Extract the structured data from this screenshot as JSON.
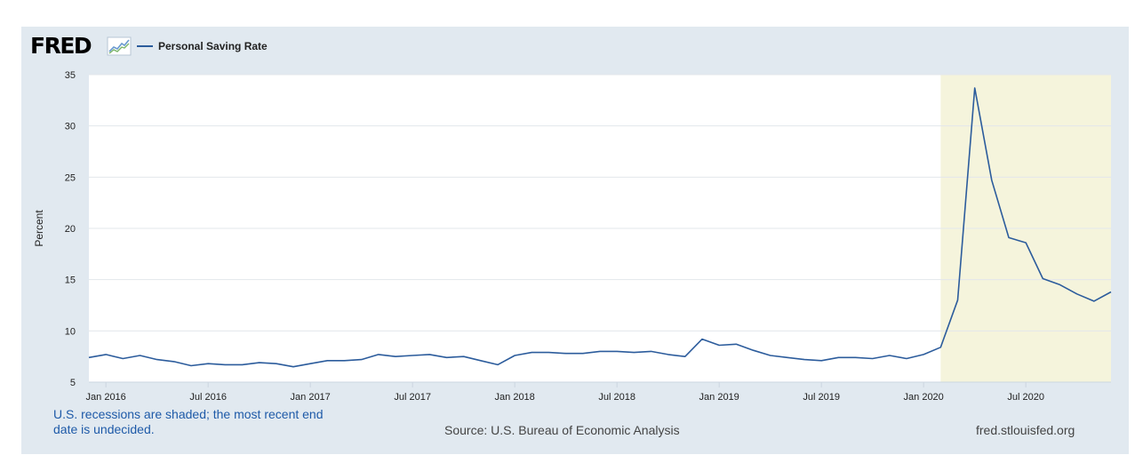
{
  "brand": {
    "logo_text": "FRED",
    "logo_icon": "fred-line-graph-icon"
  },
  "colors": {
    "line": "#2c5c9c",
    "recession": "#f5f4dc",
    "frame": "#e1e9f0",
    "note": "#1e5aa8"
  },
  "chart_data": {
    "type": "line",
    "title": "",
    "ylabel": "Percent",
    "xlabel": "",
    "ylim": [
      5,
      35
    ],
    "yticks": [
      5,
      10,
      15,
      20,
      25,
      30,
      35
    ],
    "grid": true,
    "legend_position": "top-left",
    "xlim": [
      "2015-12",
      "2020-12"
    ],
    "xticks": [
      {
        "label": "Jan 2016",
        "date": "2016-01"
      },
      {
        "label": "Jul 2016",
        "date": "2016-07"
      },
      {
        "label": "Jan 2017",
        "date": "2017-01"
      },
      {
        "label": "Jul 2017",
        "date": "2017-07"
      },
      {
        "label": "Jan 2018",
        "date": "2018-01"
      },
      {
        "label": "Jul 2018",
        "date": "2018-07"
      },
      {
        "label": "Jan 2019",
        "date": "2019-01"
      },
      {
        "label": "Jul 2019",
        "date": "2019-07"
      },
      {
        "label": "Jan 2020",
        "date": "2020-01"
      },
      {
        "label": "Jul 2020",
        "date": "2020-07"
      }
    ],
    "recessions": [
      {
        "start": "2020-02",
        "end": "2020-12"
      }
    ],
    "series": [
      {
        "name": "Personal Saving Rate",
        "x": [
          "2015-12",
          "2016-01",
          "2016-02",
          "2016-03",
          "2016-04",
          "2016-05",
          "2016-06",
          "2016-07",
          "2016-08",
          "2016-09",
          "2016-10",
          "2016-11",
          "2016-12",
          "2017-01",
          "2017-02",
          "2017-03",
          "2017-04",
          "2017-05",
          "2017-06",
          "2017-07",
          "2017-08",
          "2017-09",
          "2017-10",
          "2017-11",
          "2017-12",
          "2018-01",
          "2018-02",
          "2018-03",
          "2018-04",
          "2018-05",
          "2018-06",
          "2018-07",
          "2018-08",
          "2018-09",
          "2018-10",
          "2018-11",
          "2018-12",
          "2019-01",
          "2019-02",
          "2019-03",
          "2019-04",
          "2019-05",
          "2019-06",
          "2019-07",
          "2019-08",
          "2019-09",
          "2019-10",
          "2019-11",
          "2019-12",
          "2020-01",
          "2020-02",
          "2020-03",
          "2020-04",
          "2020-05",
          "2020-06",
          "2020-07",
          "2020-08",
          "2020-09",
          "2020-10",
          "2020-11",
          "2020-12"
        ],
        "y": [
          7.4,
          7.7,
          7.3,
          7.6,
          7.2,
          7.0,
          6.6,
          6.8,
          6.7,
          6.7,
          6.9,
          6.8,
          6.5,
          6.8,
          7.1,
          7.1,
          7.2,
          7.7,
          7.5,
          7.6,
          7.7,
          7.4,
          7.5,
          7.1,
          6.7,
          7.6,
          7.9,
          7.9,
          7.8,
          7.8,
          8.0,
          8.0,
          7.9,
          8.0,
          7.7,
          7.5,
          9.2,
          8.6,
          8.7,
          8.1,
          7.6,
          7.4,
          7.2,
          7.1,
          7.4,
          7.4,
          7.3,
          7.6,
          7.3,
          7.7,
          8.4,
          13.0,
          33.7,
          24.7,
          19.1,
          18.6,
          15.1,
          14.5,
          13.6,
          12.9,
          13.8
        ]
      }
    ]
  },
  "footer": {
    "note": "U.S. recessions are shaded; the most recent end date is undecided.",
    "source": "Source: U.S. Bureau of Economic Analysis",
    "site": "fred.stlouisfed.org"
  }
}
